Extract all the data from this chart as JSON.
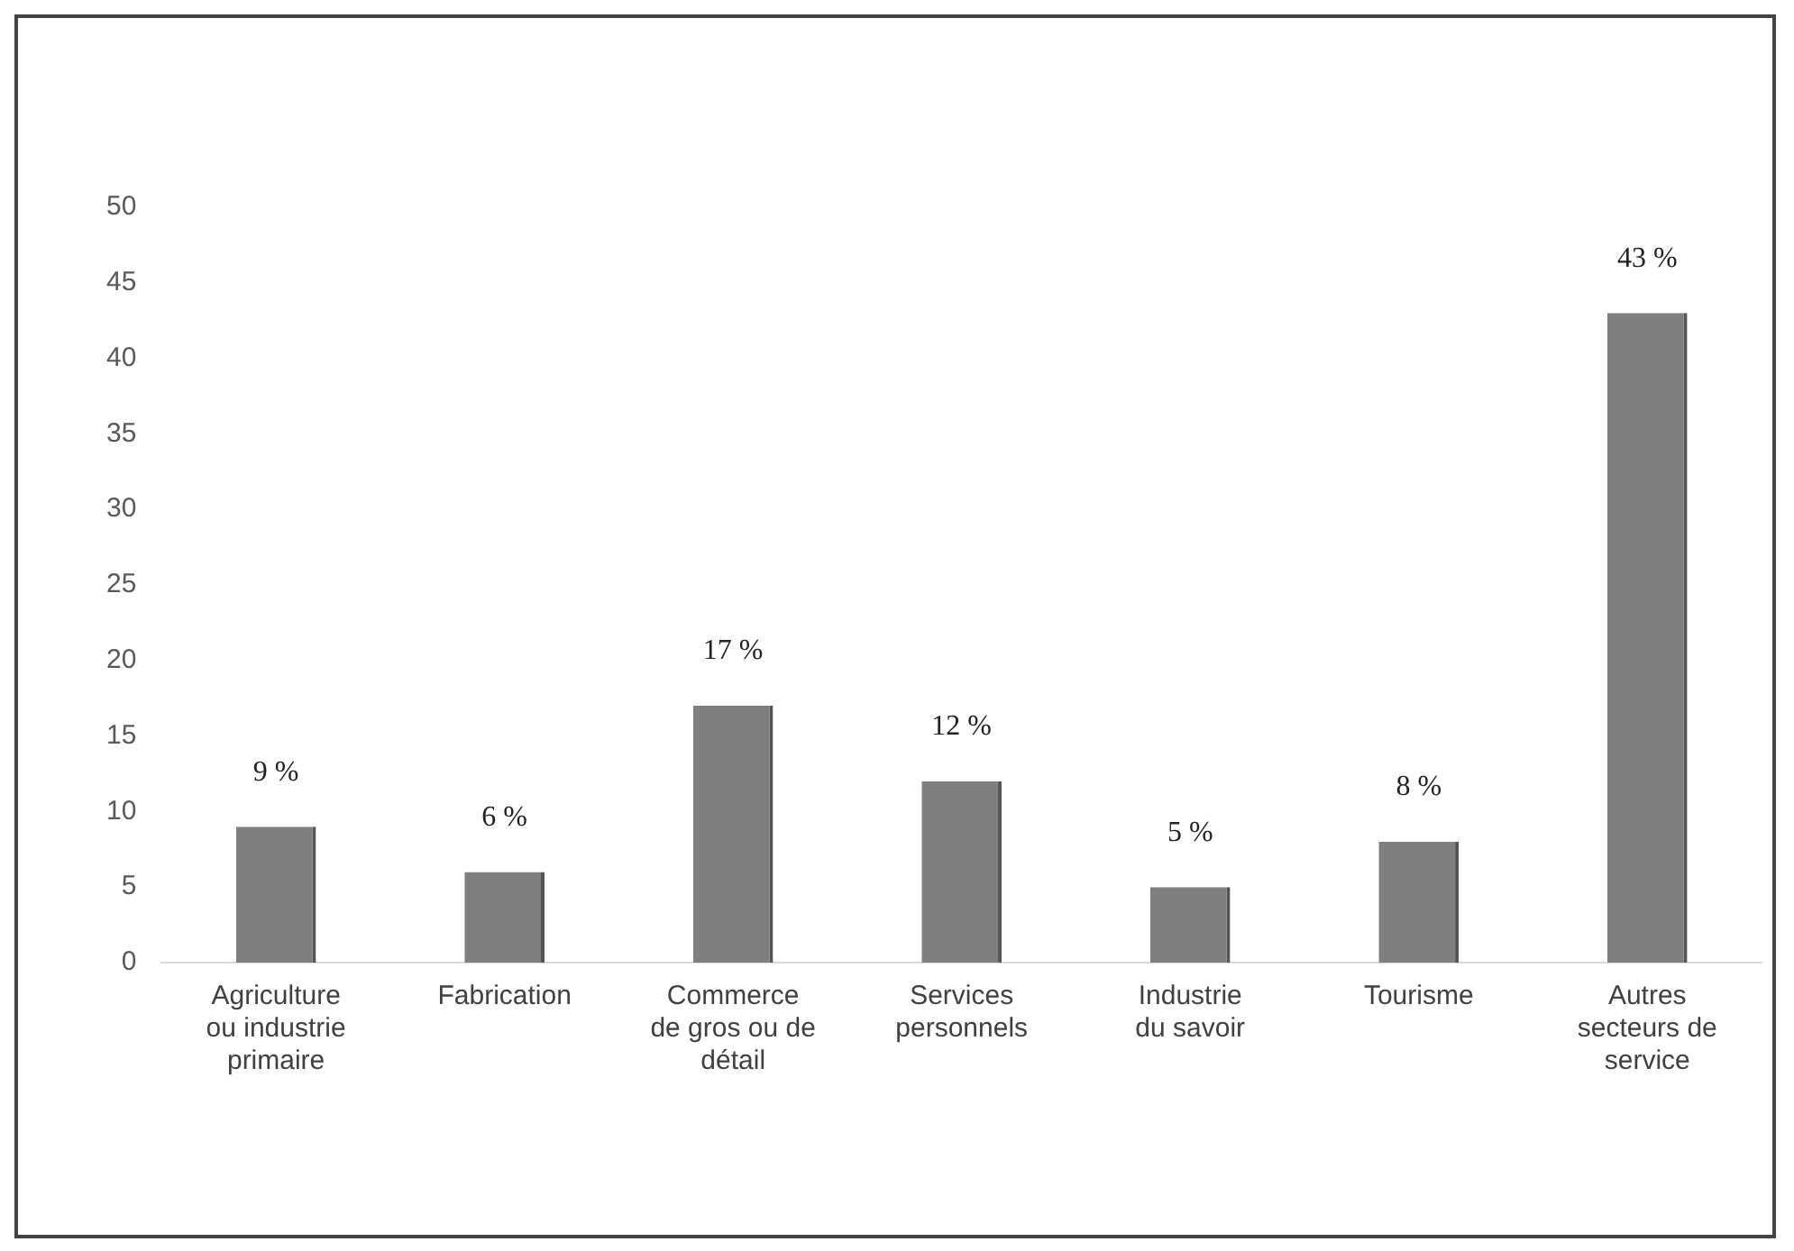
{
  "chart_data": {
    "type": "bar",
    "categories": [
      "Agriculture\nou industrie\nprimaire",
      "Fabrication",
      "Commerce\nde gros ou de\ndétail",
      "Services\npersonnels",
      "Industrie\ndu savoir",
      "Tourisme",
      "Autres\nsecteurs de\nservice"
    ],
    "values": [
      9,
      6,
      17,
      12,
      5,
      8,
      43
    ],
    "value_labels": [
      "9 %",
      "6 %",
      "17 %",
      "12 %",
      "5 %",
      "8 %",
      "43 %"
    ],
    "color": "#7f7f7f",
    "ylim": [
      0,
      50
    ],
    "yticks": [
      0,
      5,
      10,
      15,
      20,
      25,
      30,
      35,
      40,
      45,
      50
    ],
    "grid": false,
    "legend": false
  }
}
